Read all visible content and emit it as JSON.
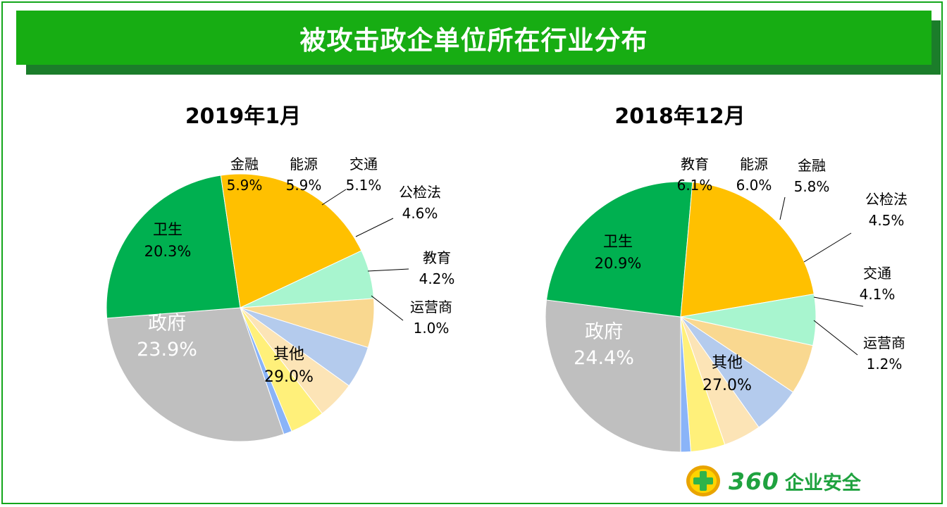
{
  "banner": {
    "title": "被攻击政企单位所在行业分布"
  },
  "logo": {
    "number": "360",
    "text": "企业安全"
  },
  "chart_data": [
    {
      "type": "pie",
      "title": "2019年1月",
      "slices": [
        {
          "label": "其他",
          "value": 29.0,
          "display": "29.0%",
          "color": "#bfbfbf"
        },
        {
          "label": "政府",
          "value": 23.9,
          "display": "23.9%",
          "color": "#00b050"
        },
        {
          "label": "卫生",
          "value": 20.3,
          "display": "20.3%",
          "color": "#ffc000"
        },
        {
          "label": "金融",
          "value": 5.9,
          "display": "5.9%",
          "color": "#a8f5cf"
        },
        {
          "label": "能源",
          "value": 5.9,
          "display": "5.9%",
          "color": "#f9d890"
        },
        {
          "label": "交通",
          "value": 5.1,
          "display": "5.1%",
          "color": "#b4cbed"
        },
        {
          "label": "公检法",
          "value": 4.6,
          "display": "4.6%",
          "color": "#fce4b6"
        },
        {
          "label": "教育",
          "value": 4.2,
          "display": "4.2%",
          "color": "#fff07a"
        },
        {
          "label": "运营商",
          "value": 1.0,
          "display": "1.0%",
          "color": "#8ab4f8"
        }
      ]
    },
    {
      "type": "pie",
      "title": "2018年12月",
      "slices": [
        {
          "label": "其他",
          "value": 27.0,
          "display": "27.0%",
          "color": "#bfbfbf"
        },
        {
          "label": "政府",
          "value": 24.4,
          "display": "24.4%",
          "color": "#00b050"
        },
        {
          "label": "卫生",
          "value": 20.9,
          "display": "20.9%",
          "color": "#ffc000"
        },
        {
          "label": "教育",
          "value": 6.1,
          "display": "6.1%",
          "color": "#a8f5cf"
        },
        {
          "label": "能源",
          "value": 6.0,
          "display": "6.0%",
          "color": "#f9d890"
        },
        {
          "label": "金融",
          "value": 5.8,
          "display": "5.8%",
          "color": "#b4cbed"
        },
        {
          "label": "公检法",
          "value": 4.5,
          "display": "4.5%",
          "color": "#fce4b6"
        },
        {
          "label": "交通",
          "value": 4.1,
          "display": "4.1%",
          "color": "#fff07a"
        },
        {
          "label": "运营商",
          "value": 1.2,
          "display": "1.2%",
          "color": "#8ab4f8"
        }
      ]
    }
  ]
}
